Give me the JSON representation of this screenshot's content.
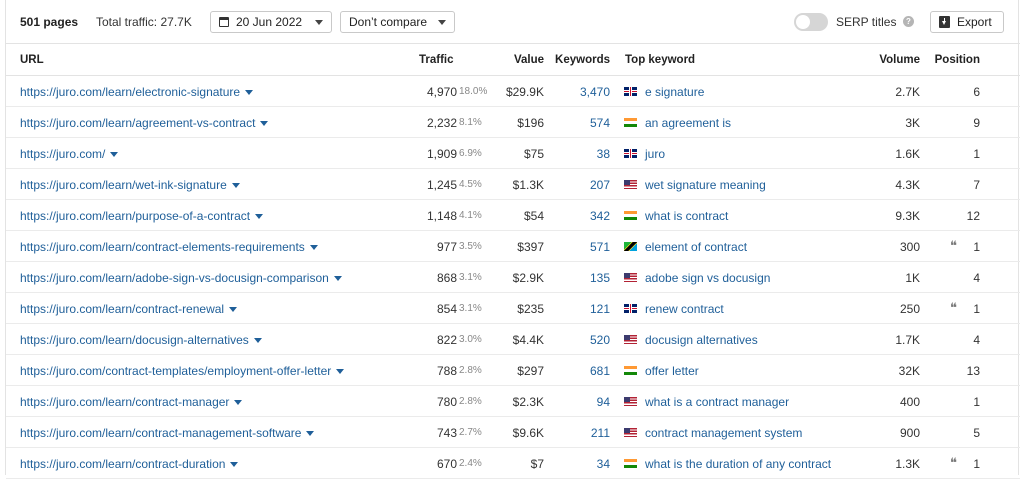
{
  "toolbar": {
    "pages": "501 pages",
    "traffic": "Total traffic: 27.7K",
    "date": "20 Jun 2022",
    "compare": "Don’t compare",
    "serp_label": "SERP titles",
    "export": "Export"
  },
  "columns": {
    "url": "URL",
    "traffic": "Traffic",
    "value": "Value",
    "keywords": "Keywords",
    "top_keyword": "Top keyword",
    "volume": "Volume",
    "position": "Position"
  },
  "rows": [
    {
      "url": "https://juro.com/learn/electronic-signature",
      "traffic": "4,970",
      "pct": "18.0%",
      "value": "$29.9K",
      "keywords": "3,470",
      "flag": "uk",
      "top": "e signature",
      "volume": "2.7K",
      "quote": false,
      "position": "6"
    },
    {
      "url": "https://juro.com/learn/agreement-vs-contract",
      "traffic": "2,232",
      "pct": "8.1%",
      "value": "$196",
      "keywords": "574",
      "flag": "in",
      "top": "an agreement is",
      "volume": "3K",
      "quote": false,
      "position": "9"
    },
    {
      "url": "https://juro.com/",
      "traffic": "1,909",
      "pct": "6.9%",
      "value": "$75",
      "keywords": "38",
      "flag": "uk",
      "top": "juro",
      "volume": "1.6K",
      "quote": false,
      "position": "1"
    },
    {
      "url": "https://juro.com/learn/wet-ink-signature",
      "traffic": "1,245",
      "pct": "4.5%",
      "value": "$1.3K",
      "keywords": "207",
      "flag": "us",
      "top": "wet signature meaning",
      "volume": "4.3K",
      "quote": false,
      "position": "7"
    },
    {
      "url": "https://juro.com/learn/purpose-of-a-contract",
      "traffic": "1,148",
      "pct": "4.1%",
      "value": "$54",
      "keywords": "342",
      "flag": "in",
      "top": "what is contract",
      "volume": "9.3K",
      "quote": false,
      "position": "12"
    },
    {
      "url": "https://juro.com/learn/contract-elements-requirements",
      "traffic": "977",
      "pct": "3.5%",
      "value": "$397",
      "keywords": "571",
      "flag": "tz",
      "top": "element of contract",
      "volume": "300",
      "quote": true,
      "position": "1"
    },
    {
      "url": "https://juro.com/learn/adobe-sign-vs-docusign-comparison",
      "traffic": "868",
      "pct": "3.1%",
      "value": "$2.9K",
      "keywords": "135",
      "flag": "us",
      "top": "adobe sign vs docusign",
      "volume": "1K",
      "quote": false,
      "position": "4"
    },
    {
      "url": "https://juro.com/learn/contract-renewal",
      "traffic": "854",
      "pct": "3.1%",
      "value": "$235",
      "keywords": "121",
      "flag": "uk",
      "top": "renew contract",
      "volume": "250",
      "quote": true,
      "position": "1"
    },
    {
      "url": "https://juro.com/learn/docusign-alternatives",
      "traffic": "822",
      "pct": "3.0%",
      "value": "$4.4K",
      "keywords": "520",
      "flag": "us",
      "top": "docusign alternatives",
      "volume": "1.7K",
      "quote": false,
      "position": "4"
    },
    {
      "url": "https://juro.com/contract-templates/employment-offer-letter",
      "traffic": "788",
      "pct": "2.8%",
      "value": "$297",
      "keywords": "681",
      "flag": "in",
      "top": "offer letter",
      "volume": "32K",
      "quote": false,
      "position": "13"
    },
    {
      "url": "https://juro.com/learn/contract-manager",
      "traffic": "780",
      "pct": "2.8%",
      "value": "$2.3K",
      "keywords": "94",
      "flag": "us",
      "top": "what is a contract manager",
      "volume": "400",
      "quote": false,
      "position": "1"
    },
    {
      "url": "https://juro.com/learn/contract-management-software",
      "traffic": "743",
      "pct": "2.7%",
      "value": "$9.6K",
      "keywords": "211",
      "flag": "us",
      "top": "contract management system",
      "volume": "900",
      "quote": false,
      "position": "5"
    },
    {
      "url": "https://juro.com/learn/contract-duration",
      "traffic": "670",
      "pct": "2.4%",
      "value": "$7",
      "keywords": "34",
      "flag": "in",
      "top": "what is the duration of any contract",
      "volume": "1.3K",
      "quote": true,
      "position": "1"
    }
  ]
}
